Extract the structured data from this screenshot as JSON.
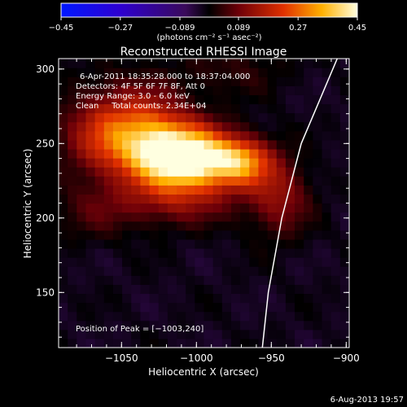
{
  "chart_data": {
    "type": "heatmap",
    "title": "Reconstructed RHESSI Image",
    "xlabel": "Heliocentric X (arcsec)",
    "ylabel": "Heliocentric Y (arcsec)",
    "xlim": [
      -1092,
      -898
    ],
    "ylim": [
      113,
      307
    ],
    "xticks": [
      -1050,
      -1000,
      -950,
      -900
    ],
    "xtick_labels": [
      "−1050",
      "−1000",
      "−950",
      "−900"
    ],
    "yticks": [
      150,
      200,
      250,
      300
    ],
    "ytick_labels": [
      "150",
      "200",
      "250",
      "300"
    ],
    "colorbar": {
      "label": "(photons cm⁻² s⁻¹ asec⁻²)",
      "range": [
        -0.45,
        0.45
      ],
      "ticks": [
        -0.45,
        -0.27,
        -0.089,
        0.089,
        0.27,
        0.45
      ],
      "tick_labels": [
        "−0.45",
        "−0.27",
        "−0.089",
        "0.089",
        "0.27",
        "0.45"
      ]
    },
    "annotations": {
      "time": "6-Apr-2011 18:35:28.000 to 18:37:04.000",
      "detectors": "Detectors: 4F 5F 6F 7F 8F, Att 0",
      "energy": "Energy Range: 3.0 - 6.0 keV",
      "clean": "Clean     Total counts: 2.34E+04",
      "peak": "Position of Peak = [−1003,240]"
    },
    "peak": [
      -1003,
      240
    ],
    "sources": [
      {
        "x": -1003,
        "y": 240,
        "amp": 0.45,
        "sx": 20,
        "sy": 14
      },
      {
        "x": -1030,
        "y": 246,
        "amp": 0.28,
        "sx": 20,
        "sy": 16
      },
      {
        "x": -970,
        "y": 238,
        "amp": 0.28,
        "sx": 14,
        "sy": 11
      },
      {
        "x": -1045,
        "y": 268,
        "amp": 0.16,
        "sx": 26,
        "sy": 18
      },
      {
        "x": -1065,
        "y": 250,
        "amp": 0.11,
        "sx": 18,
        "sy": 16
      },
      {
        "x": -1015,
        "y": 212,
        "amp": 0.12,
        "sx": 30,
        "sy": 12
      },
      {
        "x": -945,
        "y": 215,
        "amp": 0.14,
        "sx": 14,
        "sy": 18
      },
      {
        "x": -1070,
        "y": 205,
        "amp": 0.06,
        "sx": 20,
        "sy": 14
      },
      {
        "x": -975,
        "y": 300,
        "amp": 0.05,
        "sx": 25,
        "sy": 12
      }
    ],
    "background": -0.02,
    "limb": [
      [
        -906,
        307
      ],
      [
        -930,
        250
      ],
      [
        -943,
        200
      ],
      [
        -952,
        150
      ],
      [
        -956,
        113
      ]
    ],
    "footer_date": "6-Aug-2013 19:57"
  }
}
